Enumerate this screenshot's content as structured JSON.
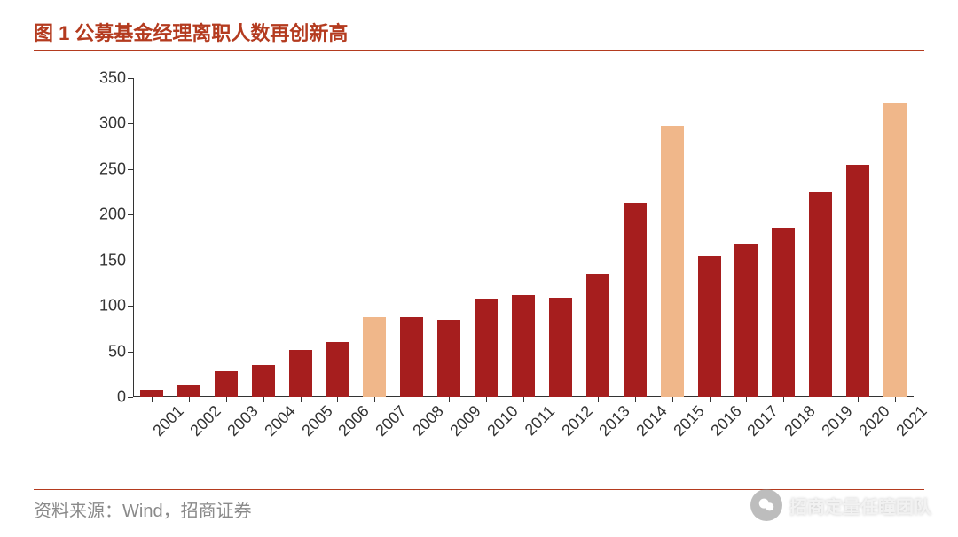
{
  "title": {
    "prefix": "图 1",
    "text": "公募基金经理离职人数再创新高",
    "color": "#b43b1f",
    "rule_color": "#b43b1f",
    "fontsize": 22
  },
  "chart": {
    "type": "bar",
    "categories": [
      "2001",
      "2002",
      "2003",
      "2004",
      "2005",
      "2006",
      "2007",
      "2008",
      "2009",
      "2010",
      "2011",
      "2012",
      "2013",
      "2014",
      "2015",
      "2016",
      "2017",
      "2018",
      "2019",
      "2020",
      "2021"
    ],
    "values": [
      8,
      14,
      28,
      35,
      52,
      60,
      88,
      88,
      85,
      108,
      112,
      109,
      135,
      213,
      298,
      155,
      168,
      186,
      225,
      255,
      323
    ],
    "highlight_indices": [
      6,
      14,
      20
    ],
    "bar_color": "#a61e1e",
    "highlight_color": "#f0b78a",
    "ylim": [
      0,
      350
    ],
    "ytick_step": 50,
    "bar_width": 0.62,
    "axis_color": "#333333",
    "tick_fontsize": 18,
    "background_color": "#ffffff"
  },
  "source": {
    "label": "资料来源：Wind，招商证券",
    "color": "#8a8a8a",
    "rule_color": "#b43b1f"
  },
  "watermark": {
    "text": "招商定量任瞳团队"
  }
}
